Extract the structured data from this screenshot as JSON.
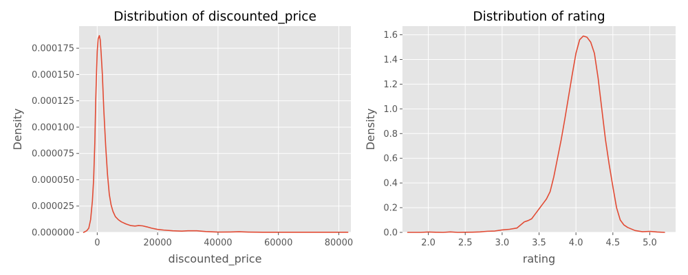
{
  "chart_data": [
    {
      "type": "line",
      "title": "Distribution of discounted_price",
      "xlabel": "discounted_price",
      "ylabel": "Density",
      "xlim": [
        -6000,
        84000
      ],
      "ylim": [
        0,
        0.000196
      ],
      "xticks": [
        {
          "value": 0,
          "label": "0"
        },
        {
          "value": 20000,
          "label": "20000"
        },
        {
          "value": 40000,
          "label": "40000"
        },
        {
          "value": 60000,
          "label": "60000"
        },
        {
          "value": 80000,
          "label": "80000"
        }
      ],
      "yticks": [
        {
          "value": 0,
          "label": "0.000000"
        },
        {
          "value": 2.5e-05,
          "label": "0.000025"
        },
        {
          "value": 5e-05,
          "label": "0.000050"
        },
        {
          "value": 7.5e-05,
          "label": "0.000075"
        },
        {
          "value": 0.0001,
          "label": "0.000100"
        },
        {
          "value": 0.000125,
          "label": "0.000125"
        },
        {
          "value": 0.00015,
          "label": "0.000150"
        },
        {
          "value": 0.000175,
          "label": "0.000175"
        }
      ],
      "grid": true,
      "series": [
        {
          "color": "#e24a33",
          "x": [
            -4500,
            -3500,
            -2800,
            -2200,
            -1600,
            -1200,
            -800,
            -500,
            -200,
            0,
            300,
            700,
            1000,
            1300,
            1700,
            2200,
            2800,
            3400,
            4000,
            4600,
            5200,
            6000,
            7000,
            8000,
            9500,
            11000,
            12500,
            13700,
            15000,
            16500,
            18000,
            20000,
            22000,
            25000,
            28000,
            30000,
            33000,
            36000,
            40000,
            44000,
            47000,
            50000,
            55000,
            60000,
            65000,
            70000,
            75000,
            80000,
            83000
          ],
          "y": [
            0,
            1.5e-06,
            4e-06,
            1.2e-05,
            3e-05,
            5e-05,
            8.5e-05,
            0.000125,
            0.000155,
            0.000172,
            0.000184,
            0.000187,
            0.000183,
            0.00017,
            0.00015,
            0.000115,
            8.2e-05,
            5.5e-05,
            3.6e-05,
            2.6e-05,
            2e-05,
            1.5e-05,
            1.2e-05,
            1e-05,
            8e-06,
            6.5e-06,
            6e-06,
            6.5e-06,
            6.2e-06,
            5.2e-06,
            4e-06,
            2.8e-06,
            2.2e-06,
            1.5e-06,
            1.2e-06,
            1.5e-06,
            1.5e-06,
            8e-07,
            3e-07,
            4e-07,
            6e-07,
            3e-07,
            1e-07,
            1e-07,
            1e-07,
            1e-07,
            1e-07,
            1e-07,
            1e-07
          ]
        }
      ]
    },
    {
      "type": "line",
      "title": "Distribution of rating",
      "xlabel": "rating",
      "ylabel": "Density",
      "xlim": [
        1.65,
        5.35
      ],
      "ylim": [
        0,
        1.67
      ],
      "xticks": [
        {
          "value": 2.0,
          "label": "2.0"
        },
        {
          "value": 2.5,
          "label": "2.5"
        },
        {
          "value": 3.0,
          "label": "3.0"
        },
        {
          "value": 3.5,
          "label": "3.5"
        },
        {
          "value": 4.0,
          "label": "4.0"
        },
        {
          "value": 4.5,
          "label": "4.5"
        },
        {
          "value": 5.0,
          "label": "5.0"
        }
      ],
      "yticks": [
        {
          "value": 0,
          "label": "0.0"
        },
        {
          "value": 0.2,
          "label": "0.2"
        },
        {
          "value": 0.4,
          "label": "0.4"
        },
        {
          "value": 0.6,
          "label": "0.6"
        },
        {
          "value": 0.8,
          "label": "0.8"
        },
        {
          "value": 1.0,
          "label": "1.0"
        },
        {
          "value": 1.2,
          "label": "1.2"
        },
        {
          "value": 1.4,
          "label": "1.4"
        },
        {
          "value": 1.6,
          "label": "1.6"
        }
      ],
      "grid": true,
      "series": [
        {
          "color": "#e24a33",
          "x": [
            1.72,
            1.9,
            2.0,
            2.1,
            2.2,
            2.3,
            2.4,
            2.5,
            2.6,
            2.7,
            2.8,
            2.9,
            3.0,
            3.1,
            3.2,
            3.25,
            3.3,
            3.35,
            3.4,
            3.45,
            3.5,
            3.55,
            3.6,
            3.65,
            3.7,
            3.75,
            3.8,
            3.85,
            3.9,
            3.95,
            4.0,
            4.05,
            4.1,
            4.15,
            4.2,
            4.25,
            4.3,
            4.35,
            4.4,
            4.45,
            4.5,
            4.55,
            4.6,
            4.65,
            4.7,
            4.8,
            4.9,
            5.0,
            5.1,
            5.2
          ],
          "y": [
            0,
            0,
            0.003,
            0.001,
            0,
            0.004,
            0,
            0.001,
            0.002,
            0.004,
            0.009,
            0.011,
            0.02,
            0.025,
            0.035,
            0.06,
            0.085,
            0.095,
            0.11,
            0.15,
            0.19,
            0.23,
            0.27,
            0.33,
            0.45,
            0.6,
            0.75,
            0.92,
            1.1,
            1.28,
            1.45,
            1.56,
            1.59,
            1.58,
            1.54,
            1.45,
            1.25,
            1.0,
            0.75,
            0.55,
            0.37,
            0.2,
            0.1,
            0.06,
            0.04,
            0.015,
            0.005,
            0.008,
            0.003,
            0
          ]
        }
      ]
    }
  ]
}
